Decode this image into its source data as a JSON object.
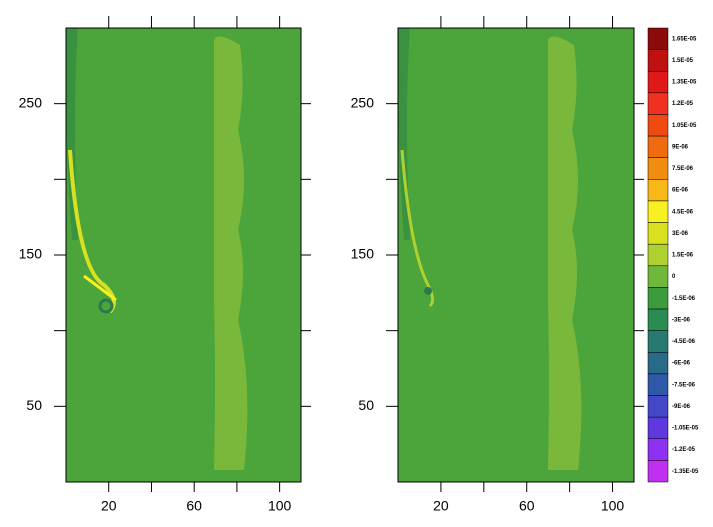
{
  "chart_data": [
    {
      "type": "contour",
      "xlim": [
        0,
        110
      ],
      "ylim": [
        0,
        300
      ],
      "xticks": [
        20,
        60,
        100
      ],
      "yticks": [
        50,
        150,
        250
      ],
      "xminorticks": [
        40,
        80
      ],
      "yminorticks": [
        100,
        200
      ]
    },
    {
      "type": "contour",
      "xlim": [
        0,
        110
      ],
      "ylim": [
        0,
        300
      ],
      "xticks": [
        20,
        60,
        100
      ],
      "yticks": [
        50,
        150,
        250
      ],
      "xminorticks": [
        40,
        80
      ],
      "yminorticks": [
        100,
        200
      ],
      "colorbar": {
        "ticks": [
          {
            "value": 1.65e-05,
            "label": "1.65E-05"
          },
          {
            "value": 1.5e-05,
            "label": "1.5E-05"
          },
          {
            "value": 1.35e-05,
            "label": "1.35E-05"
          },
          {
            "value": 1.2e-05,
            "label": "1.2E-05"
          },
          {
            "value": 1.05e-05,
            "label": "1.05E-05"
          },
          {
            "value": 9e-06,
            "label": "9E-06"
          },
          {
            "value": 7.5e-06,
            "label": "7.5E-06"
          },
          {
            "value": 6e-06,
            "label": "6E-06"
          },
          {
            "value": 4.5e-06,
            "label": "4.5E-06"
          },
          {
            "value": 3e-06,
            "label": "3E-06"
          },
          {
            "value": 1.5e-06,
            "label": "1.5E-06"
          },
          0,
          {
            "value": -1.5e-06,
            "label": "-1.5E-06"
          },
          {
            "value": -3e-06,
            "label": "-3E-06"
          },
          {
            "value": -4.5e-06,
            "label": "-4.5E-06"
          },
          {
            "value": -6e-06,
            "label": "-6E-06"
          },
          {
            "value": -7.5e-06,
            "label": "-7.5E-06"
          },
          {
            "value": -9e-06,
            "label": "-9E-06"
          },
          {
            "value": -1.05e-05,
            "label": "-1.05E-05"
          },
          {
            "value": -1.2e-05,
            "label": "-1.2E-05"
          },
          {
            "value": -1.35e-05,
            "label": "-1.35E-05"
          }
        ],
        "colors": [
          "#8b0a0a",
          "#c01010",
          "#e01818",
          "#f03020",
          "#f04a10",
          "#f06a10",
          "#f08c10",
          "#f8b818",
          "#f8f020",
          "#d8e020",
          "#b0d030",
          "#70b83a",
          "#3c9c3c",
          "#2a8c50",
          "#287a70",
          "#286a88",
          "#3058a8",
          "#4448c8",
          "#6038e0",
          "#9030f0",
          "#c030f0"
        ]
      }
    }
  ]
}
